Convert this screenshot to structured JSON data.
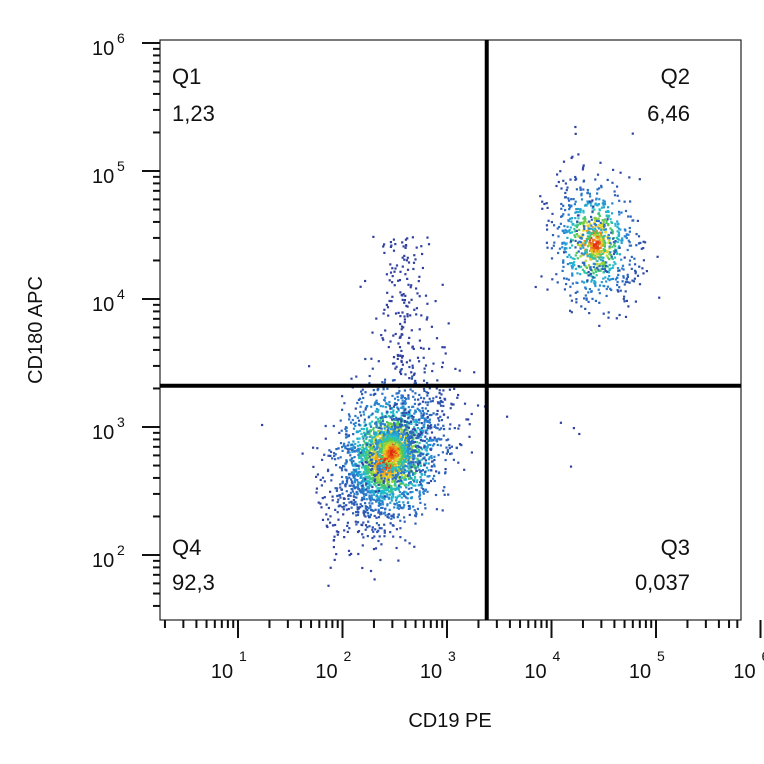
{
  "chart_data": {
    "type": "scatter",
    "subtype": "flow-cytometry density dot plot",
    "xlabel": "CD19 PE",
    "ylabel": "CD180 APC",
    "x_scale": "log",
    "y_scale": "log",
    "x_ticks": [
      {
        "base": "10",
        "exp": "1",
        "value": 10
      },
      {
        "base": "10",
        "exp": "2",
        "value": 100
      },
      {
        "base": "10",
        "exp": "3",
        "value": 1000
      },
      {
        "base": "10",
        "exp": "4",
        "value": 10000
      },
      {
        "base": "10",
        "exp": "5",
        "value": 100000
      },
      {
        "base": "10",
        "exp": "6",
        "value": 1000000
      }
    ],
    "y_ticks": [
      {
        "base": "10",
        "exp": "2",
        "value": 100
      },
      {
        "base": "10",
        "exp": "3",
        "value": 1000
      },
      {
        "base": "10",
        "exp": "4",
        "value": 10000
      },
      {
        "base": "10",
        "exp": "5",
        "value": 100000
      },
      {
        "base": "10",
        "exp": "6",
        "value": 1000000
      }
    ],
    "gates": {
      "x_threshold": 2400,
      "y_threshold": 2100
    },
    "quadrants": [
      {
        "name": "Q1",
        "value": "1,23",
        "position": "top-left"
      },
      {
        "name": "Q2",
        "value": "6,46",
        "position": "top-right"
      },
      {
        "name": "Q3",
        "value": "0,037",
        "position": "bottom-right"
      },
      {
        "name": "Q4",
        "value": "92,3",
        "position": "bottom-left"
      }
    ],
    "populations": [
      {
        "id": "Q4-main",
        "center_x": 280,
        "center_y": 620,
        "percent_of_events": 92.3
      },
      {
        "id": "Q2-main",
        "center_x": 25000,
        "center_y": 28000,
        "percent_of_events": 6.46
      },
      {
        "id": "Q1-streak",
        "center_x": 400,
        "center_y": 8000,
        "percent_of_events": 1.23
      }
    ],
    "colors": {
      "low_density": "#3040a0",
      "mid_density": "#20c0d0",
      "high_density": "#e02010",
      "gate_line": "#000000"
    }
  }
}
